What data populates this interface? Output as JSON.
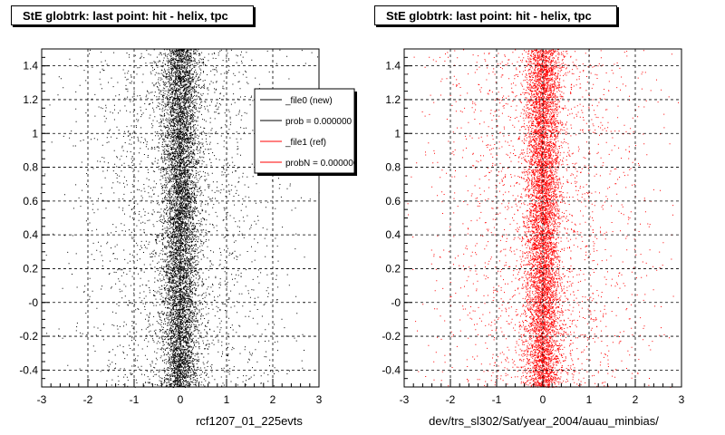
{
  "chart_data": [
    {
      "type": "scatter",
      "title": "StE globtrk: last point: hit - helix, tpc",
      "xlabel": "rcf1207_01_225evts",
      "ylabel": "",
      "xlim": [
        -3,
        3
      ],
      "ylim": [
        -0.5,
        1.5
      ],
      "x_ticks": [
        "-3",
        "-2",
        "-1",
        "0",
        "1",
        "2",
        "3"
      ],
      "y_ticks": [
        "-0.4",
        "-0.2",
        "-0",
        "0.2",
        "0.4",
        "0.6",
        "0.8",
        "1",
        "1.2",
        "1.4"
      ],
      "grid": true,
      "series": [
        {
          "name": "_file0 (new)",
          "color": "#000000",
          "distribution": {
            "center_x": 0.0,
            "sigma_x": 0.35,
            "tail_fraction": 0.25,
            "y_range": [
              -0.5,
              1.5
            ]
          }
        }
      ],
      "legend": {
        "placement": "top-right",
        "entries": [
          {
            "label": "_file0 (new)",
            "color": "#000000"
          },
          {
            "label": "prob = 0.000000",
            "color": "#000000"
          },
          {
            "label": "_file1 (ref)",
            "color": "#ff0000"
          },
          {
            "label": "probN = 0.000000",
            "color": "#ff0000"
          }
        ]
      }
    },
    {
      "type": "scatter",
      "title": "StE globtrk: last point: hit - helix, tpc",
      "xlabel": "dev/trs_sl302/Sat/year_2004/auau_minbias/",
      "ylabel": "",
      "xlim": [
        -3,
        3
      ],
      "ylim": [
        -0.5,
        1.5
      ],
      "x_ticks": [
        "-3",
        "-2",
        "-1",
        "0",
        "1",
        "2",
        "3"
      ],
      "y_ticks": [
        "-0.4",
        "-0.2",
        "-0",
        "0.2",
        "0.4",
        "0.6",
        "0.8",
        "1",
        "1.2",
        "1.4"
      ],
      "grid": true,
      "series": [
        {
          "name": "_file1 (ref)",
          "color": "#ff0000",
          "distribution": {
            "center_x": 0.0,
            "sigma_x": 0.35,
            "tail_fraction": 0.25,
            "y_range": [
              -0.5,
              1.5
            ]
          }
        }
      ]
    }
  ]
}
